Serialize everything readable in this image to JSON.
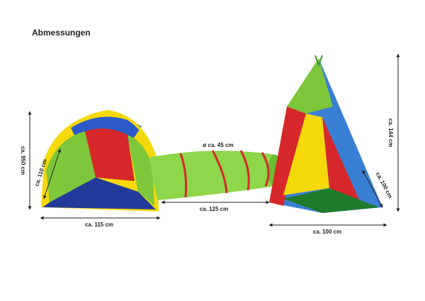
{
  "title": "Abmessungen",
  "dimensions": [
    {
      "label": "ca. 950 cm"
    },
    {
      "label": "ca. 110 cm"
    },
    {
      "label": "ca. 115 cm"
    },
    {
      "label": "ø ca. 45 cm"
    },
    {
      "label": "ca. 125 cm"
    },
    {
      "label": "ca. 144 cm"
    },
    {
      "label": "ca. 100 cm"
    },
    {
      "label": "ca. 100 cm"
    }
  ]
}
